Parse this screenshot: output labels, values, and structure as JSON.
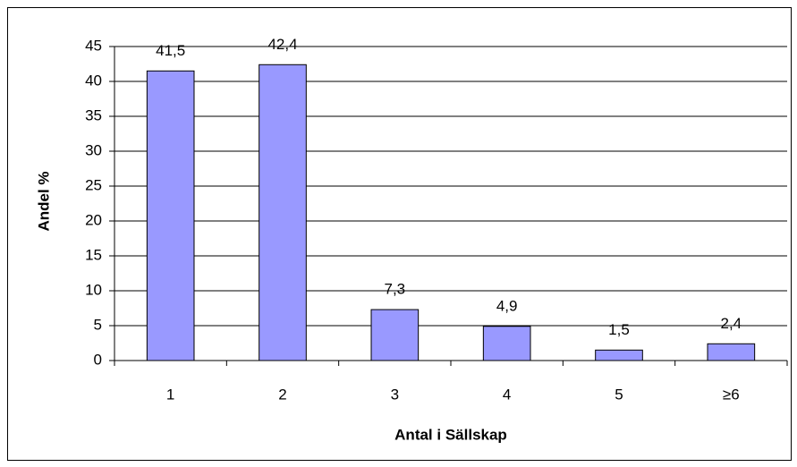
{
  "chart_data": {
    "type": "bar",
    "x_label": "Antal i Sällskap",
    "y_label": "Andel %",
    "categories": [
      "1",
      "2",
      "3",
      "4",
      "5",
      "≥6"
    ],
    "values": [
      41.5,
      42.4,
      7.3,
      4.9,
      1.5,
      2.4
    ],
    "value_labels": [
      "41,5",
      "42,4",
      "7,3",
      "4,9",
      "1,5",
      "2,4"
    ],
    "color": "#9999ff",
    "ylim": [
      0,
      45
    ],
    "yticks": [
      0,
      5,
      10,
      15,
      20,
      25,
      30,
      35,
      40,
      45
    ],
    "grid": true
  }
}
